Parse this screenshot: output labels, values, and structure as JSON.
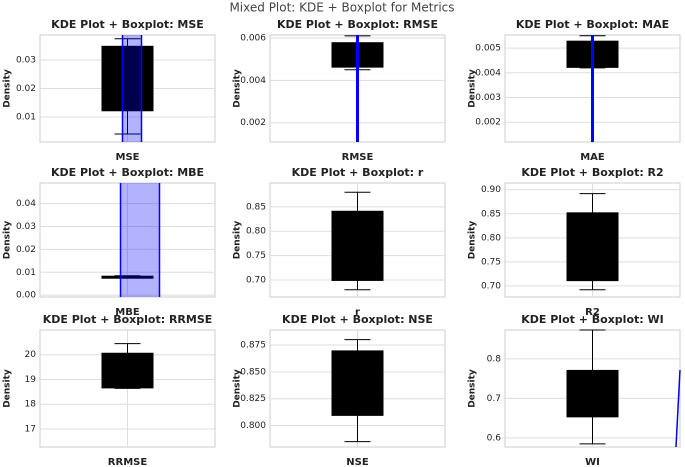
{
  "title": "Mixed Plot: KDE + Boxplot for Metrics",
  "chart_data": [
    {
      "type": "box",
      "title": "KDE Plot + Boxplot: MSE",
      "categories": [
        "MSE"
      ],
      "ylabel": "Density",
      "ylim": [
        0.0012,
        0.0388
      ],
      "yticks": [
        0.01,
        0.02,
        0.03
      ],
      "stats": {
        "low": 0.004,
        "q1": 0.012,
        "q3": 0.035,
        "high": 0.0375
      },
      "color": "#000000",
      "kde_color": "#0000ff",
      "grid": true
    },
    {
      "type": "box",
      "title": "KDE Plot + Boxplot: RMSE",
      "categories": [
        "RMSE"
      ],
      "ylabel": "Density",
      "ylim": [
        0.00109,
        0.00614
      ],
      "yticks": [
        0.002,
        0.004,
        0.006
      ],
      "stats": {
        "low": 0.0045,
        "q1": 0.0046,
        "q3": 0.0058,
        "high": 0.0061
      },
      "color": "#000000",
      "kde_color": "#0000ff",
      "grid": true
    },
    {
      "type": "box",
      "title": "KDE Plot + Boxplot: MAE",
      "categories": [
        "MAE"
      ],
      "ylabel": "Density",
      "ylim": [
        0.0012,
        0.00553
      ],
      "yticks": [
        0.002,
        0.003,
        0.004,
        0.005
      ],
      "stats": {
        "low": 0.0042,
        "q1": 0.0042,
        "q3": 0.0053,
        "high": 0.0055
      },
      "color": "#000000",
      "kde_color": "#0000ff",
      "grid": true
    },
    {
      "type": "box",
      "title": "KDE Plot + Boxplot: MBE",
      "categories": [
        "MBE"
      ],
      "ylabel": "Density",
      "ylim": [
        -0.0008,
        0.049
      ],
      "yticks": [
        {
          "value": 0,
          "label": "0.00"
        },
        0.01,
        0.02,
        0.03,
        0.04
      ],
      "stats": {
        "low": 0.0075,
        "q1": 0.0075,
        "q3": 0.0085,
        "high": 0.0085
      },
      "color": "#000000",
      "kde_color": "#0000ff",
      "grid": true
    },
    {
      "type": "box",
      "title": "KDE Plot + Boxplot: r",
      "categories": [
        "r"
      ],
      "ylabel": "Density",
      "ylim": [
        0.665,
        0.899
      ],
      "yticks": [
        {
          "value": 0.7,
          "label": "0.70"
        },
        0.75,
        {
          "value": 0.8,
          "label": "0.80"
        },
        0.85
      ],
      "stats": {
        "low": 0.68,
        "q1": 0.698,
        "q3": 0.842,
        "high": 0.88
      },
      "color": "#000000",
      "grid": true
    },
    {
      "type": "box",
      "title": "KDE Plot + Boxplot: R2",
      "categories": [
        "R2"
      ],
      "ylabel": "Density",
      "ylim": [
        0.677,
        0.914
      ],
      "yticks": [
        {
          "value": 0.7,
          "label": "0.70"
        },
        0.75,
        {
          "value": 0.8,
          "label": "0.80"
        },
        0.85,
        {
          "value": 0.9,
          "label": "0.90"
        }
      ],
      "stats": {
        "low": 0.692,
        "q1": 0.71,
        "q3": 0.853,
        "high": 0.892
      },
      "color": "#000000",
      "grid": true
    },
    {
      "type": "box",
      "title": "KDE Plot + Boxplot: RRMSE",
      "categories": [
        "RRMSE"
      ],
      "ylabel": "Density",
      "ylim": [
        16.27,
        21.0
      ],
      "yticks": [
        17,
        18,
        19,
        20
      ],
      "stats": {
        "low": 18.64,
        "q1": 18.64,
        "q3": 20.08,
        "high": 20.45
      },
      "color": "#000000",
      "grid": true
    },
    {
      "type": "box",
      "title": "KDE Plot + Boxplot: NSE",
      "categories": [
        "NSE"
      ],
      "ylabel": "Density",
      "ylim": [
        0.78,
        0.889
      ],
      "yticks": [
        {
          "value": 0.8,
          "label": "0.800"
        },
        0.825,
        {
          "value": 0.85,
          "label": "0.850"
        },
        0.875
      ],
      "stats": {
        "low": 0.785,
        "q1": 0.809,
        "q3": 0.87,
        "high": 0.88
      },
      "color": "#000000",
      "grid": true
    },
    {
      "type": "box",
      "title": "KDE Plot + Boxplot: WI",
      "categories": [
        "WI"
      ],
      "ylabel": "Density",
      "ylim": [
        0.577,
        0.873
      ],
      "yticks": [
        0.6,
        0.7,
        0.8
      ],
      "stats": {
        "low": 0.585,
        "q1": 0.652,
        "q3": 0.772,
        "high": 0.873
      },
      "color": "#000000",
      "kde_color": "#0000ff",
      "grid": true
    }
  ]
}
